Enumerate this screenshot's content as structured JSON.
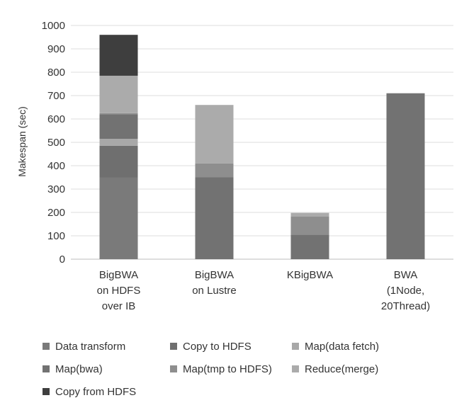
{
  "chart_data": {
    "type": "bar",
    "stacked": true,
    "ylabel": "Makespan (sec)",
    "xlabel": "",
    "ylim": [
      0,
      1000
    ],
    "yticks": [
      0,
      100,
      200,
      300,
      400,
      500,
      600,
      700,
      800,
      900,
      1000
    ],
    "grid": true,
    "legend_position": "bottom",
    "categories": [
      [
        "BigBWA",
        "on HDFS",
        "over IB"
      ],
      [
        "BigBWA",
        "on Lustre"
      ],
      [
        "KBigBWA"
      ],
      [
        "BWA",
        "(1Node,",
        "20Thread)"
      ]
    ],
    "series": [
      {
        "name": "Data transform",
        "color": "#7a7a7a",
        "values": [
          350,
          0,
          0,
          0
        ]
      },
      {
        "name": "Copy to HDFS",
        "color": "#6f6f6f",
        "values": [
          135,
          0,
          0,
          0
        ]
      },
      {
        "name": "Map(data fetch)",
        "color": "#a8a8a8",
        "values": [
          30,
          0,
          0,
          0
        ]
      },
      {
        "name": "Map(bwa)",
        "color": "#727272",
        "values": [
          105,
          350,
          105,
          710
        ]
      },
      {
        "name": "Map(tmp to HDFS)",
        "color": "#8e8e8e",
        "values": [
          5,
          60,
          78,
          0
        ]
      },
      {
        "name": "Reduce(merge)",
        "color": "#ababab",
        "values": [
          160,
          250,
          15,
          0
        ]
      },
      {
        "name": "Copy from HDFS",
        "color": "#3e3e3e",
        "values": [
          175,
          0,
          0,
          0
        ]
      }
    ]
  }
}
